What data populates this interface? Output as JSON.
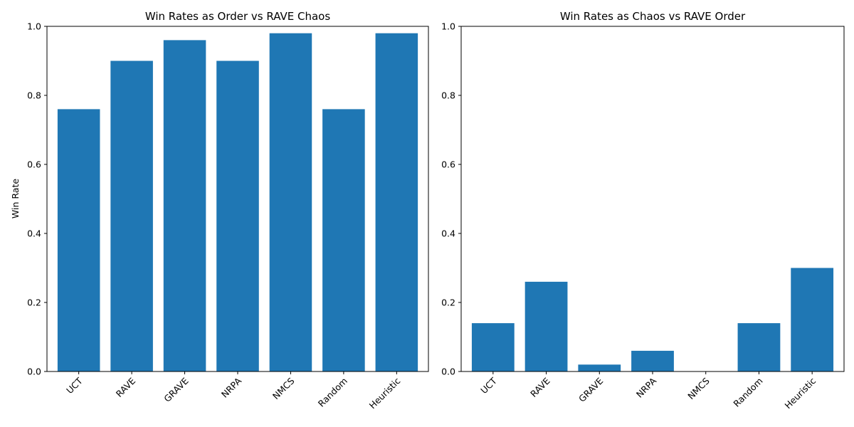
{
  "colors": {
    "bar": "#1f77b4",
    "axis": "#000000",
    "background": "#ffffff"
  },
  "chart_data": [
    {
      "type": "bar",
      "title": "Win Rates as Order vs RAVE Chaos",
      "xlabel": "",
      "ylabel": "Win Rate",
      "ylim": [
        0,
        1
      ],
      "yticks": [
        0.0,
        0.2,
        0.4,
        0.6,
        0.8,
        1.0
      ],
      "ytick_labels": [
        "0.0",
        "0.2",
        "0.4",
        "0.6",
        "0.8",
        "1.0"
      ],
      "categories": [
        "UCT",
        "RAVE",
        "GRAVE",
        "NRPA",
        "NMCS",
        "Random",
        "Heuristic"
      ],
      "values": [
        0.76,
        0.9,
        0.96,
        0.9,
        0.98,
        0.76,
        0.98
      ],
      "grid": false,
      "legend": "none"
    },
    {
      "type": "bar",
      "title": "Win Rates as Chaos vs RAVE Order",
      "xlabel": "",
      "ylabel": "",
      "ylim": [
        0,
        1
      ],
      "yticks": [
        0.0,
        0.2,
        0.4,
        0.6,
        0.8,
        1.0
      ],
      "ytick_labels": [
        "0.0",
        "0.2",
        "0.4",
        "0.6",
        "0.8",
        "1.0"
      ],
      "categories": [
        "UCT",
        "RAVE",
        "GRAVE",
        "NRPA",
        "NMCS",
        "Random",
        "Heuristic"
      ],
      "values": [
        0.14,
        0.26,
        0.02,
        0.06,
        0.0,
        0.14,
        0.3
      ],
      "grid": false,
      "legend": "none"
    }
  ]
}
